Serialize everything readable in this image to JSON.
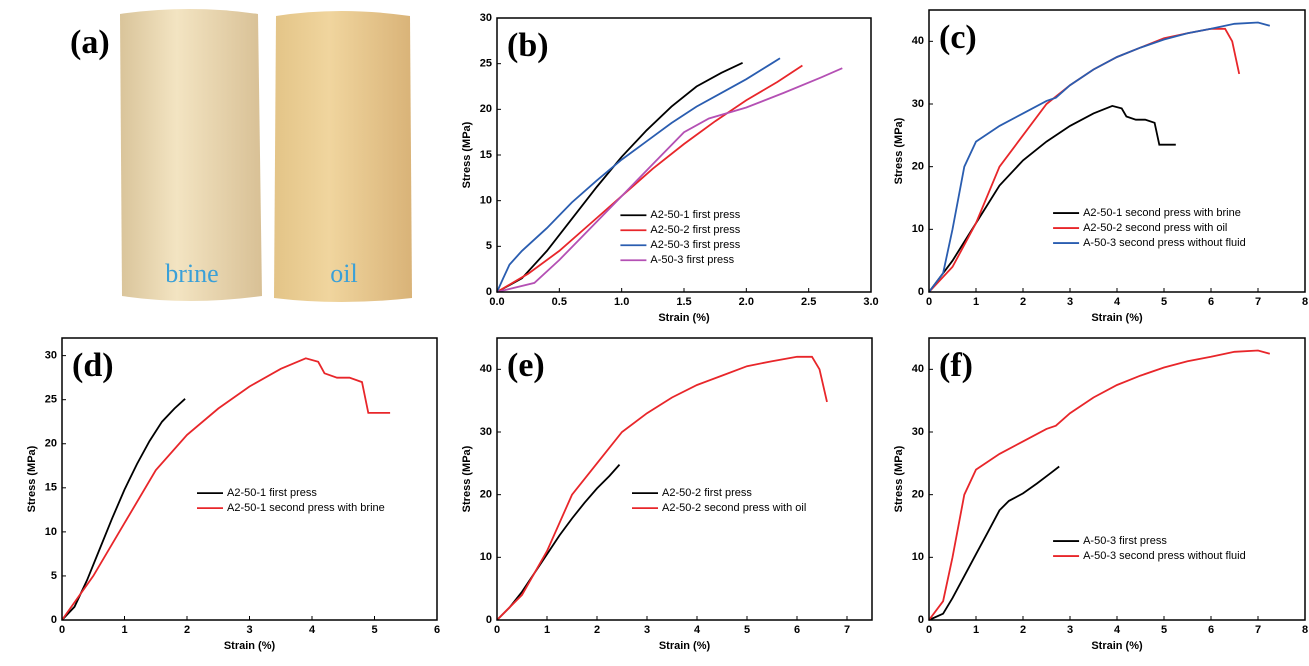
{
  "photo": {
    "panel_label": "(a)",
    "samples": [
      "brine",
      "oil"
    ]
  },
  "chart_data": [
    {
      "type": "line",
      "panel_label": "(b)",
      "x_label": "Strain (%)",
      "y_label": "Stress (MPa)",
      "xlim": [
        0,
        3
      ],
      "ylim": [
        0,
        30
      ],
      "xticks": [
        {
          "value": 0,
          "label": "0.0"
        },
        0.5,
        {
          "value": 1,
          "label": "1.0"
        },
        1.5,
        {
          "value": 2,
          "label": "2.0"
        },
        2.5,
        {
          "value": 3,
          "label": "3.0"
        }
      ],
      "yticks": [
        0,
        5,
        10,
        15,
        20,
        25,
        30
      ],
      "legend": "lower right",
      "series": [
        {
          "name": "A2-50-1 first press",
          "color": "#000000",
          "x": [
            0,
            0.2,
            0.4,
            0.6,
            0.8,
            1.0,
            1.2,
            1.4,
            1.6,
            1.8,
            1.97
          ],
          "values": [
            0,
            1.5,
            4.5,
            8,
            11.5,
            14.8,
            17.7,
            20.3,
            22.5,
            24,
            25.1
          ]
        },
        {
          "name": "A2-50-2 first press",
          "color": "#e8262a",
          "x": [
            0,
            0.25,
            0.5,
            0.75,
            1.0,
            1.25,
            1.5,
            1.75,
            2.0,
            2.25,
            2.45
          ],
          "values": [
            0,
            2,
            4.5,
            7.5,
            10.5,
            13.5,
            16.2,
            18.7,
            21,
            23,
            24.8
          ]
        },
        {
          "name": "A2-50-3 first press",
          "color": "#2a5db0",
          "x": [
            0,
            0.05,
            0.1,
            0.2,
            0.4,
            0.6,
            0.8,
            1.0,
            1.2,
            1.4,
            1.6,
            1.8,
            2.0,
            2.2,
            2.27
          ],
          "values": [
            0,
            1.5,
            3,
            4.5,
            7,
            9.8,
            12.2,
            14.5,
            16.5,
            18.5,
            20.3,
            21.8,
            23.3,
            25,
            25.6
          ]
        },
        {
          "name": "A-50-3 first press",
          "color": "#b450b4",
          "x": [
            0,
            0.3,
            0.5,
            0.75,
            1.0,
            1.25,
            1.5,
            1.7,
            2.0,
            2.3,
            2.6,
            2.77
          ],
          "values": [
            0,
            1,
            3.5,
            7,
            10.5,
            14,
            17.5,
            19,
            20.2,
            21.8,
            23.5,
            24.5
          ]
        }
      ]
    },
    {
      "type": "line",
      "panel_label": "(c)",
      "x_label": "Strain (%)",
      "y_label": "Stress (MPa)",
      "xlim": [
        0,
        8
      ],
      "ylim": [
        0,
        45
      ],
      "xticks": [
        0,
        1,
        2,
        3,
        4,
        5,
        6,
        7,
        8
      ],
      "yticks": [
        0,
        10,
        20,
        30,
        40
      ],
      "legend": "lower right",
      "series": [
        {
          "name": "A2-50-1 second press with brine",
          "color": "#000000",
          "x": [
            0,
            0.5,
            1,
            1.5,
            2,
            2.5,
            3,
            3.5,
            3.9,
            4.1,
            4.2,
            4.4,
            4.6,
            4.8,
            4.9,
            5.25
          ],
          "values": [
            0,
            5,
            11,
            17,
            21,
            24,
            26.5,
            28.5,
            29.7,
            29.3,
            28,
            27.5,
            27.5,
            27,
            23.5,
            23.5
          ]
        },
        {
          "name": "A2-50-2 second press with oil",
          "color": "#e8262a",
          "x": [
            0,
            0.5,
            1,
            1.5,
            2,
            2.5,
            3,
            3.5,
            4,
            4.5,
            5,
            5.5,
            6,
            6.3,
            6.45,
            6.6
          ],
          "values": [
            0,
            4,
            11,
            20,
            25,
            30,
            33,
            35.5,
            37.5,
            39,
            40.5,
            41.3,
            42,
            42,
            40,
            34.8
          ]
        },
        {
          "name": "A-50-3 second press without fluid",
          "color": "#2a5db0",
          "x": [
            0,
            0.3,
            0.5,
            0.75,
            1,
            1.5,
            2,
            2.5,
            2.7,
            3,
            3.5,
            4,
            4.5,
            5,
            5.5,
            6,
            6.5,
            7,
            7.25
          ],
          "values": [
            0,
            3,
            10,
            20,
            24,
            26.5,
            28.5,
            30.5,
            31,
            33,
            35.5,
            37.5,
            39,
            40.3,
            41.3,
            42,
            42.8,
            43,
            42.5
          ]
        }
      ]
    },
    {
      "type": "line",
      "panel_label": "(d)",
      "x_label": "Strain (%)",
      "y_label": "Stress (MPa)",
      "xlim": [
        0,
        6
      ],
      "ylim": [
        0,
        32
      ],
      "xticks": [
        0,
        1,
        2,
        3,
        4,
        5,
        6
      ],
      "yticks": [
        0,
        5,
        10,
        15,
        20,
        25,
        30
      ],
      "legend": "center",
      "series": [
        {
          "name": "A2-50-1 first press",
          "color": "#000000",
          "x": [
            0,
            0.2,
            0.4,
            0.6,
            0.8,
            1.0,
            1.2,
            1.4,
            1.6,
            1.8,
            1.97
          ],
          "values": [
            0,
            1.5,
            4.5,
            8,
            11.5,
            14.8,
            17.7,
            20.3,
            22.5,
            24,
            25.1
          ]
        },
        {
          "name": "A2-50-1 second press with brine",
          "color": "#e8262a",
          "x": [
            0,
            0.5,
            1,
            1.5,
            2,
            2.5,
            3,
            3.5,
            3.9,
            4.1,
            4.2,
            4.4,
            4.6,
            4.8,
            4.9,
            5.25
          ],
          "values": [
            0,
            5,
            11,
            17,
            21,
            24,
            26.5,
            28.5,
            29.7,
            29.3,
            28,
            27.5,
            27.5,
            27,
            23.5,
            23.5
          ]
        }
      ]
    },
    {
      "type": "line",
      "panel_label": "(e)",
      "x_label": "Strain (%)",
      "y_label": "Stress (MPa)",
      "xlim": [
        0,
        7.5
      ],
      "ylim": [
        0,
        45
      ],
      "xticks": [
        0,
        1,
        2,
        3,
        4,
        5,
        6,
        7
      ],
      "yticks": [
        0,
        10,
        20,
        30,
        40
      ],
      "legend": "center",
      "series": [
        {
          "name": "A2-50-2 first press",
          "color": "#000000",
          "x": [
            0,
            0.25,
            0.5,
            0.75,
            1.0,
            1.25,
            1.5,
            1.75,
            2.0,
            2.25,
            2.45
          ],
          "values": [
            0,
            2,
            4.5,
            7.5,
            10.5,
            13.5,
            16.2,
            18.7,
            21,
            23,
            24.8
          ]
        },
        {
          "name": "A2-50-2 second press with oil",
          "color": "#e8262a",
          "x": [
            0,
            0.5,
            1,
            1.5,
            2,
            2.5,
            3,
            3.5,
            4,
            4.5,
            5,
            5.5,
            6,
            6.3,
            6.45,
            6.6
          ],
          "values": [
            0,
            4,
            11,
            20,
            25,
            30,
            33,
            35.5,
            37.5,
            39,
            40.5,
            41.3,
            42,
            42,
            40,
            34.8
          ]
        }
      ]
    },
    {
      "type": "line",
      "panel_label": "(f)",
      "x_label": "Strain (%)",
      "y_label": "Stress (MPa)",
      "xlim": [
        0,
        8
      ],
      "ylim": [
        0,
        45
      ],
      "xticks": [
        0,
        1,
        2,
        3,
        4,
        5,
        6,
        7,
        8
      ],
      "yticks": [
        0,
        10,
        20,
        30,
        40
      ],
      "legend": "lower right",
      "series": [
        {
          "name": "A-50-3 first press",
          "color": "#000000",
          "x": [
            0,
            0.3,
            0.5,
            0.75,
            1.0,
            1.25,
            1.5,
            1.7,
            2.0,
            2.3,
            2.6,
            2.77
          ],
          "values": [
            0,
            1,
            3.5,
            7,
            10.5,
            14,
            17.5,
            19,
            20.2,
            21.8,
            23.5,
            24.5
          ]
        },
        {
          "name": "A-50-3 second press without fluid",
          "color": "#e8262a",
          "x": [
            0,
            0.3,
            0.5,
            0.75,
            1,
            1.5,
            2,
            2.5,
            2.7,
            3,
            3.5,
            4,
            4.5,
            5,
            5.5,
            6,
            6.5,
            7,
            7.25
          ],
          "values": [
            0,
            3,
            10,
            20,
            24,
            26.5,
            28.5,
            30.5,
            31,
            33,
            35.5,
            37.5,
            39,
            40.3,
            41.3,
            42,
            42.8,
            43,
            42.5
          ]
        }
      ]
    }
  ]
}
